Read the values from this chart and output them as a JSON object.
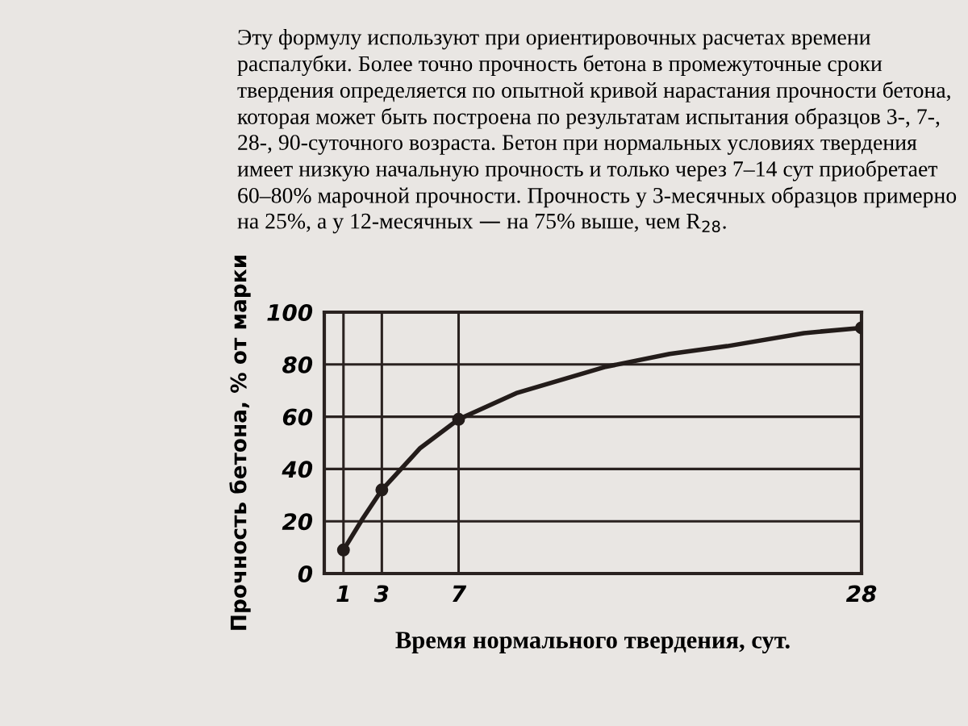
{
  "chart_data": {
    "type": "line",
    "xlabel": "Время нормального твердения, сут.",
    "ylabel": "Прочность бетона, % от марки",
    "annotations": [
      "Эту формулу используют при ориентировочных расчетах времени распалубки. Более точно прочность бетона в промежуточные сроки твердения определяется по опытной кривой нарастания прочности бетона, которая может быть построена по результатам испытания образцов 3-, 7-, 28-, 90-суточного возраста. Бетон при нормальных условиях твердения имеет низкую начальную прочность и только через 7–14 сут приобретает 60–80% марочной прочности. Прочность у 3-месячных образцов примерно на 25%, а у 12-месячных — на 75% выше, чем R$_{28}$."
    ],
    "series": [
      {
        "color": "#231c1a",
        "x": [
          1,
          2,
          3,
          5,
          7,
          10,
          14.6,
          18,
          21,
          25,
          28
        ],
        "values": [
          9,
          21,
          32,
          48,
          59,
          69,
          79,
          84,
          87,
          92,
          94
        ]
      },
      {
        "type": "scatter",
        "marker": "circle",
        "color": "#231c1a",
        "x": [
          1,
          3,
          7,
          28
        ],
        "values": [
          9,
          32,
          59,
          94
        ]
      }
    ],
    "xlim": [
      0,
      28
    ],
    "xticks": [
      1,
      3,
      7,
      28
    ],
    "ylim": [
      0,
      100
    ],
    "yticks": [
      0,
      20,
      40,
      60,
      80,
      100
    ],
    "grid": true,
    "line_style": "solid"
  }
}
